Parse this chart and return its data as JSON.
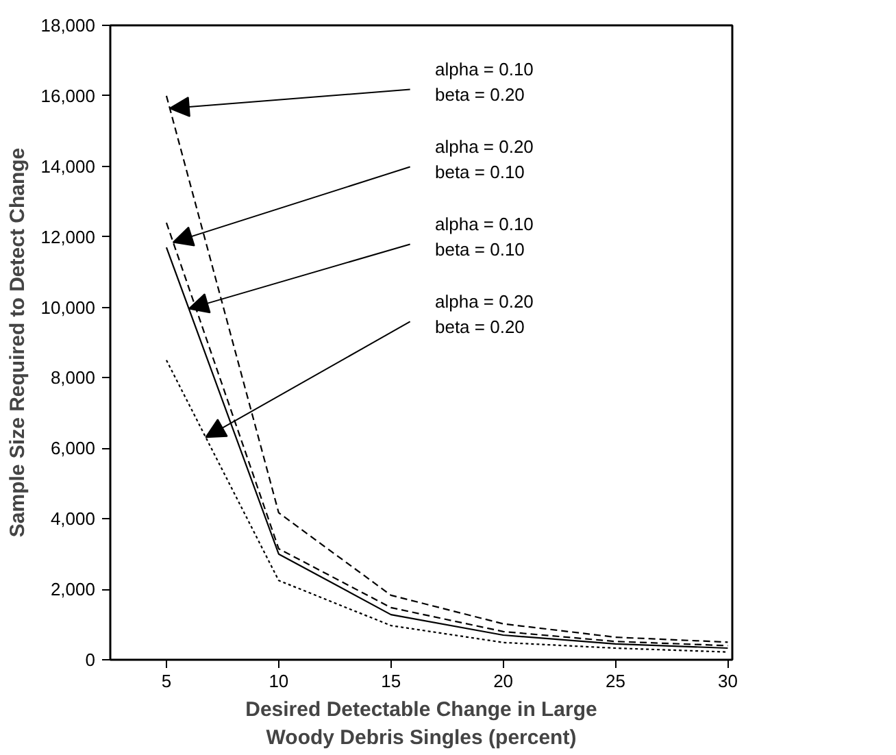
{
  "chart_data": {
    "type": "line",
    "xlabel": "Desired Detectable Change in Large\nWoody Debris Singles (percent)",
    "ylabel": "Sample Size Required to Detect Change",
    "x": [
      5,
      10,
      15,
      20,
      25,
      30
    ],
    "series": [
      {
        "color": "#000000",
        "line_style": "dashed",
        "values": [
          16000,
          4170,
          1830,
          1020,
          640,
          500
        ]
      },
      {
        "color": "#000000",
        "line_style": "dashed",
        "values": [
          12400,
          3150,
          1480,
          800,
          520,
          400
        ]
      },
      {
        "color": "#000000",
        "line_style": "solid",
        "values": [
          11700,
          3000,
          1280,
          700,
          450,
          330
        ]
      },
      {
        "color": "#000000",
        "line_style": "dotted",
        "values": [
          8500,
          2250,
          970,
          490,
          330,
          220
        ]
      }
    ],
    "xlim": [
      2.5,
      30.2
    ],
    "ylim": [
      0,
      18000
    ],
    "xticks": [
      5,
      10,
      15,
      20,
      25,
      30
    ],
    "yticks": [
      {
        "value": 0,
        "label": "0"
      },
      {
        "value": 2000,
        "label": "2,000"
      },
      {
        "value": 4000,
        "label": "4,000"
      },
      {
        "value": 6000,
        "label": "6,000"
      },
      {
        "value": 8000,
        "label": "8,000"
      },
      {
        "value": 10000,
        "label": "10,000"
      },
      {
        "value": 12000,
        "label": "12,000"
      },
      {
        "value": 14000,
        "label": "14,000"
      },
      {
        "value": 16000,
        "label": "16,000"
      },
      {
        "value": 18000,
        "label": "18,000"
      }
    ],
    "annotations": [
      "alpha = 0.10\nbeta = 0.20",
      "alpha = 0.20\nbeta = 0.10",
      "alpha = 0.10\nbeta = 0.10",
      "alpha = 0.20\nbeta = 0.20"
    ],
    "grid": false
  }
}
